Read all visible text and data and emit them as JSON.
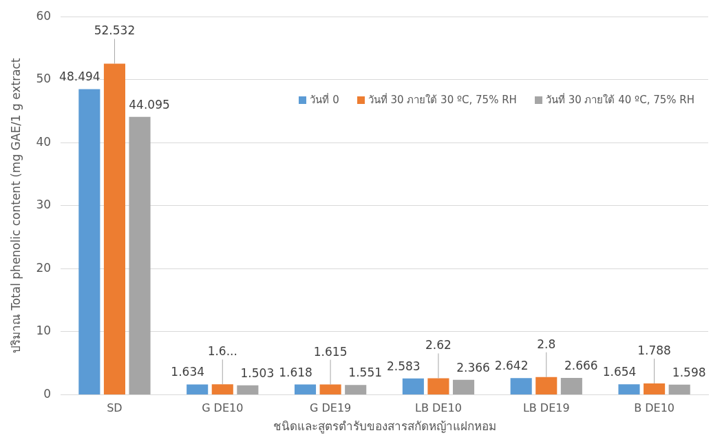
{
  "chart_data": {
    "type": "bar",
    "xlabel": "ชนิดและสูตรตำรับของสารสกัดหญ้าแฝกหอม",
    "ylabel": "ปริมาณ Total phenolic content (mg GAE/1 g extract",
    "categories": [
      "SD",
      "G DE10",
      "G DE19",
      "LB DE10",
      "LB DE19",
      "B DE10"
    ],
    "series": [
      {
        "name": "วันที่ 0",
        "color": "#5b9bd5",
        "values": [
          48.494,
          1.634,
          1.618,
          2.583,
          2.642,
          1.654
        ],
        "value_labels": [
          "48.494",
          "1.634",
          "1.618",
          "2.583",
          "2.642",
          "1.654"
        ]
      },
      {
        "name": "วันที่ 30 ภายใต้ 30 ºC, 75% RH",
        "color": "#ed7d31",
        "values": [
          52.532,
          1.65,
          1.615,
          2.62,
          2.8,
          1.788
        ],
        "value_labels": [
          "52.532",
          "1.6...",
          "1.615",
          "2.62",
          "2.8",
          "1.788"
        ]
      },
      {
        "name": "วันที่ 30 ภายใต้ 40 ºC, 75% RH",
        "color": "#a5a5a5",
        "values": [
          44.095,
          1.503,
          1.551,
          2.366,
          2.666,
          1.598
        ],
        "value_labels": [
          "44.095",
          "1.503",
          "1.551",
          "2.366",
          "2.666",
          "1.598"
        ]
      }
    ],
    "ylim": [
      0,
      60
    ],
    "yticks": [
      0,
      10,
      20,
      30,
      40,
      50,
      60
    ],
    "grid": "y",
    "legend": "top right"
  }
}
